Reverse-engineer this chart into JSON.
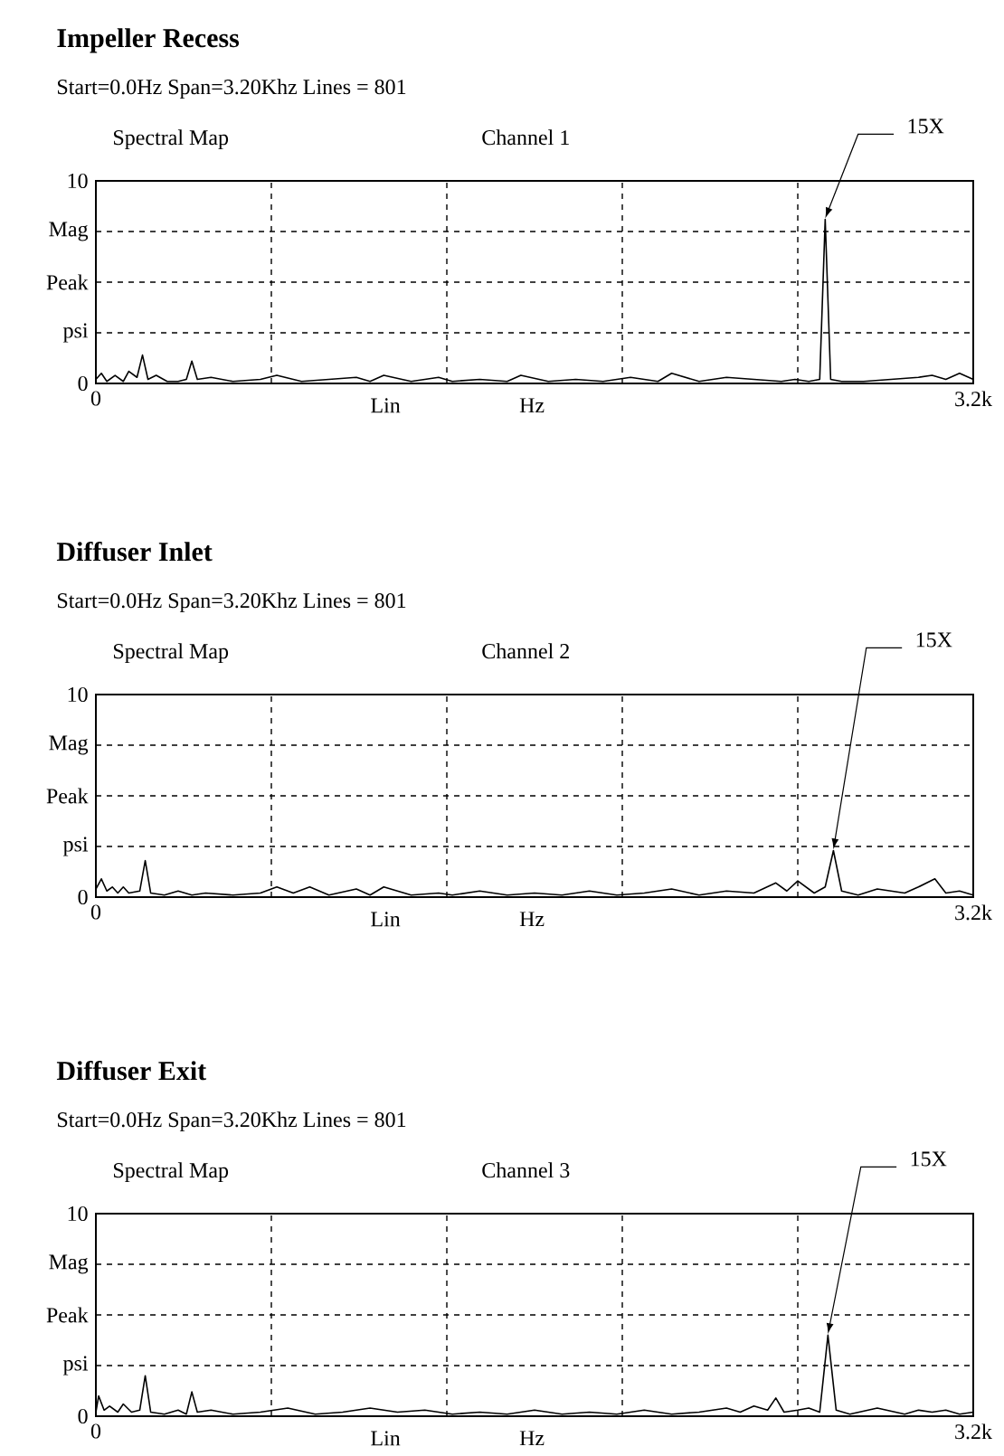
{
  "chart_data": [
    {
      "type": "line",
      "title": "Impeller Recess",
      "subtitle": "Start=0.0Hz Span=3.20Khz Lines = 801",
      "xlabel": "Lin",
      "annotations": [
        "Spectral Map",
        "Channel 1",
        {
          "text": "15X",
          "x": 2.66,
          "y": 8.1
        },
        "Hz"
      ],
      "color": "#000000",
      "grid": true,
      "xlim": [
        0,
        3.2
      ],
      "ylim": [
        0,
        10
      ],
      "xticks": [
        0,
        {
          "value": 0.64,
          "label": null
        },
        {
          "value": 1.28,
          "label": null
        },
        {
          "value": 1.92,
          "label": null
        },
        {
          "value": 2.56,
          "label": null
        },
        {
          "value": 3.2,
          "label": "3.2k"
        }
      ],
      "yticks": [
        0,
        {
          "value": 2.5,
          "label": "psi"
        },
        {
          "value": 5,
          "label": "Peak"
        },
        {
          "value": 7.5,
          "label": "Mag"
        },
        10
      ],
      "x": [
        0,
        0.02,
        0.04,
        0.07,
        0.1,
        0.12,
        0.15,
        0.17,
        0.19,
        0.22,
        0.26,
        0.3,
        0.33,
        0.35,
        0.37,
        0.42,
        0.5,
        0.6,
        0.66,
        0.75,
        0.85,
        0.95,
        1.0,
        1.05,
        1.15,
        1.25,
        1.3,
        1.4,
        1.5,
        1.55,
        1.65,
        1.75,
        1.85,
        1.95,
        2.05,
        2.1,
        2.2,
        2.3,
        2.4,
        2.5,
        2.55,
        2.6,
        2.64,
        2.66,
        2.68,
        2.72,
        2.8,
        2.9,
        3.0,
        3.05,
        3.1,
        3.15,
        3.2
      ],
      "values": [
        0.2,
        0.5,
        0.1,
        0.4,
        0.1,
        0.6,
        0.3,
        1.4,
        0.2,
        0.4,
        0.1,
        0.1,
        0.2,
        1.1,
        0.2,
        0.3,
        0.1,
        0.2,
        0.4,
        0.1,
        0.2,
        0.3,
        0.1,
        0.4,
        0.1,
        0.3,
        0.1,
        0.2,
        0.1,
        0.4,
        0.1,
        0.2,
        0.1,
        0.3,
        0.1,
        0.5,
        0.1,
        0.3,
        0.2,
        0.1,
        0.2,
        0.1,
        0.2,
        8.1,
        0.2,
        0.1,
        0.1,
        0.2,
        0.3,
        0.4,
        0.2,
        0.5,
        0.2
      ]
    },
    {
      "type": "line",
      "title": "Diffuser Inlet",
      "subtitle": "Start=0.0Hz Span=3.20Khz Lines = 801",
      "xlabel": "Lin",
      "annotations": [
        "Spectral Map",
        "Channel 2",
        {
          "text": "15X",
          "x": 2.69,
          "y": 2.3
        },
        "Hz"
      ],
      "color": "#000000",
      "grid": true,
      "xlim": [
        0,
        3.2
      ],
      "ylim": [
        0,
        10
      ],
      "xticks": [
        0,
        {
          "value": 0.64,
          "label": null
        },
        {
          "value": 1.28,
          "label": null
        },
        {
          "value": 1.92,
          "label": null
        },
        {
          "value": 2.56,
          "label": null
        },
        {
          "value": 3.2,
          "label": "3.2k"
        }
      ],
      "yticks": [
        0,
        {
          "value": 2.5,
          "label": "psi"
        },
        {
          "value": 5,
          "label": "Peak"
        },
        {
          "value": 7.5,
          "label": "Mag"
        },
        10
      ],
      "x": [
        0,
        0.02,
        0.04,
        0.06,
        0.08,
        0.1,
        0.12,
        0.16,
        0.18,
        0.2,
        0.25,
        0.3,
        0.35,
        0.4,
        0.5,
        0.6,
        0.66,
        0.72,
        0.78,
        0.85,
        0.95,
        1.0,
        1.05,
        1.15,
        1.25,
        1.3,
        1.4,
        1.5,
        1.6,
        1.7,
        1.8,
        1.9,
        2.0,
        2.1,
        2.2,
        2.3,
        2.4,
        2.48,
        2.52,
        2.56,
        2.62,
        2.66,
        2.69,
        2.72,
        2.78,
        2.85,
        2.95,
        3.0,
        3.06,
        3.1,
        3.15,
        3.2
      ],
      "values": [
        0.4,
        0.9,
        0.3,
        0.5,
        0.2,
        0.5,
        0.2,
        0.3,
        1.8,
        0.2,
        0.1,
        0.3,
        0.1,
        0.2,
        0.1,
        0.2,
        0.5,
        0.2,
        0.5,
        0.1,
        0.4,
        0.1,
        0.5,
        0.1,
        0.2,
        0.1,
        0.3,
        0.1,
        0.2,
        0.1,
        0.3,
        0.1,
        0.2,
        0.4,
        0.1,
        0.3,
        0.2,
        0.7,
        0.3,
        0.8,
        0.2,
        0.5,
        2.3,
        0.3,
        0.1,
        0.4,
        0.2,
        0.5,
        0.9,
        0.2,
        0.3,
        0.1
      ]
    },
    {
      "type": "line",
      "title": "Diffuser Exit",
      "subtitle": "Start=0.0Hz Span=3.20Khz Lines = 801",
      "xlabel": "Lin",
      "annotations": [
        "Spectral Map",
        "Channel 3",
        {
          "text": "15X",
          "x": 2.67,
          "y": 4.0
        },
        "Hz"
      ],
      "color": "#000000",
      "grid": true,
      "xlim": [
        0,
        3.2
      ],
      "ylim": [
        0,
        10
      ],
      "xticks": [
        0,
        {
          "value": 0.64,
          "label": null
        },
        {
          "value": 1.28,
          "label": null
        },
        {
          "value": 1.92,
          "label": null
        },
        {
          "value": 2.56,
          "label": null
        },
        {
          "value": 3.2,
          "label": "3.2k"
        }
      ],
      "yticks": [
        0,
        {
          "value": 2.5,
          "label": "psi"
        },
        {
          "value": 5,
          "label": "Peak"
        },
        {
          "value": 7.5,
          "label": "Mag"
        },
        10
      ],
      "x": [
        0,
        0.01,
        0.03,
        0.05,
        0.08,
        0.1,
        0.13,
        0.16,
        0.18,
        0.2,
        0.25,
        0.3,
        0.33,
        0.35,
        0.37,
        0.42,
        0.5,
        0.6,
        0.7,
        0.8,
        0.9,
        1.0,
        1.1,
        1.2,
        1.3,
        1.4,
        1.5,
        1.6,
        1.7,
        1.8,
        1.9,
        2.0,
        2.1,
        2.2,
        2.3,
        2.35,
        2.4,
        2.45,
        2.48,
        2.51,
        2.56,
        2.6,
        2.64,
        2.67,
        2.7,
        2.75,
        2.85,
        2.95,
        3.0,
        3.05,
        3.1,
        3.15,
        3.2
      ],
      "values": [
        0.2,
        1.0,
        0.3,
        0.5,
        0.2,
        0.6,
        0.2,
        0.3,
        2.0,
        0.2,
        0.1,
        0.3,
        0.1,
        1.2,
        0.2,
        0.3,
        0.1,
        0.2,
        0.4,
        0.1,
        0.2,
        0.4,
        0.2,
        0.3,
        0.1,
        0.2,
        0.1,
        0.3,
        0.1,
        0.2,
        0.1,
        0.3,
        0.1,
        0.2,
        0.4,
        0.2,
        0.5,
        0.3,
        0.9,
        0.2,
        0.3,
        0.4,
        0.2,
        4.0,
        0.3,
        0.1,
        0.4,
        0.1,
        0.3,
        0.2,
        0.3,
        0.1,
        0.2
      ]
    }
  ]
}
